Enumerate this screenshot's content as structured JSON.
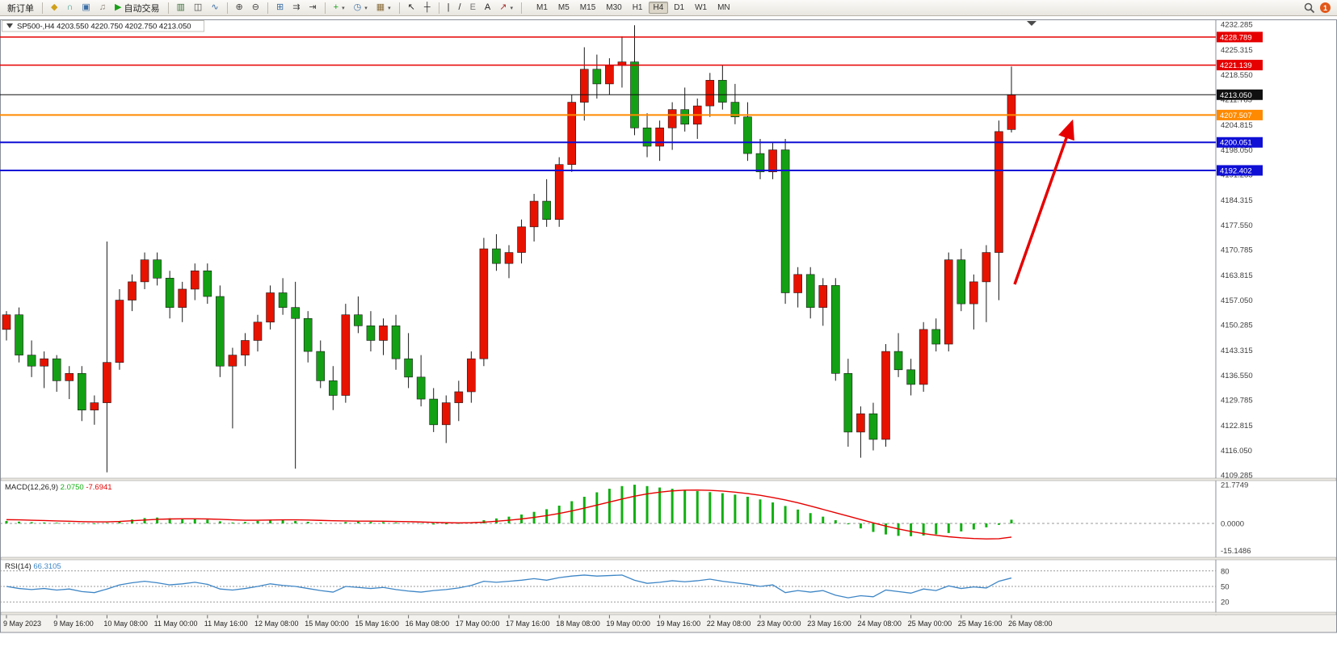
{
  "toolbar": {
    "buttons": [
      {
        "name": "new-order-button",
        "label": "新订单"
      },
      {
        "name": "sep"
      },
      {
        "name": "metaeditor-button",
        "icon": "metaeditor-icon",
        "glyph": "◆",
        "color": "#cfa018"
      },
      {
        "name": "headset-button",
        "icon": "headset-icon",
        "glyph": "∩",
        "color": "#2f9e8f"
      },
      {
        "name": "terminal-button",
        "icon": "terminal-icon",
        "glyph": "▣",
        "color": "#3a6ea5"
      },
      {
        "name": "sound-button",
        "icon": "sound-icon",
        "glyph": "♫",
        "color": "#857f74"
      },
      {
        "name": "autotrade-button",
        "icon": "play-icon",
        "glyph": "▶",
        "color": "#18a018",
        "label": "自动交易"
      },
      {
        "name": "sep"
      },
      {
        "name": "bar-chart-button",
        "icon": "bar-chart-icon",
        "glyph": "▥",
        "color": "#3b6e3b"
      },
      {
        "name": "candlestick-button",
        "icon": "candlestick-icon",
        "glyph": "◫",
        "color": "#444444"
      },
      {
        "name": "line-chart-button",
        "icon": "line-chart-icon",
        "glyph": "∿",
        "color": "#3a6ea5"
      },
      {
        "name": "sep"
      },
      {
        "name": "zoom-in-button",
        "icon": "zoom-in-icon",
        "glyph": "⊕",
        "color": "#444444"
      },
      {
        "name": "zoom-out-button",
        "icon": "zoom-out-icon",
        "glyph": "⊖",
        "color": "#444444"
      },
      {
        "name": "sep"
      },
      {
        "name": "tile-windows-button",
        "icon": "tile-windows-icon",
        "glyph": "⊞",
        "color": "#3a6ea5"
      },
      {
        "name": "auto-scroll-button",
        "icon": "auto-scroll-icon",
        "glyph": "⇉",
        "color": "#444444"
      },
      {
        "name": "chart-shift-button",
        "icon": "chart-shift-icon",
        "glyph": "⇥",
        "color": "#444444"
      },
      {
        "name": "sep"
      },
      {
        "name": "indicators-button",
        "icon": "indicators-add-icon",
        "glyph": "+",
        "color": "#18a018",
        "caret": true
      },
      {
        "name": "periods-button",
        "icon": "clock-icon",
        "glyph": "◷",
        "color": "#3a6ea5",
        "caret": true
      },
      {
        "name": "templates-button",
        "icon": "templates-icon",
        "glyph": "▦",
        "color": "#8a6d3b",
        "caret": true
      },
      {
        "name": "sep"
      },
      {
        "name": "cursor-button",
        "icon": "cursor-icon",
        "glyph": "↖",
        "color": "#222222"
      },
      {
        "name": "crosshair-button",
        "icon": "crosshair-icon",
        "glyph": "┼",
        "color": "#222222"
      },
      {
        "name": "sep"
      },
      {
        "name": "vertical-line-button",
        "icon": "vertical-line-icon",
        "glyph": "|",
        "color": "#222222"
      },
      {
        "name": "trendline-button",
        "icon": "trendline-icon",
        "glyph": "/",
        "color": "#222222"
      },
      {
        "name": "fibonacci-button",
        "icon": "fibonacci-icon",
        "glyph": "E",
        "color": "#777777"
      },
      {
        "name": "text-tool-button",
        "icon": "text-icon",
        "glyph": "A",
        "color": "#222222"
      },
      {
        "name": "arrows-tool-button",
        "icon": "arrow-tool-icon",
        "glyph": "↗",
        "color": "#a33333",
        "caret": true
      },
      {
        "name": "sep"
      }
    ],
    "timeframes": [
      "M1",
      "M5",
      "M15",
      "M30",
      "H1",
      "H4",
      "D1",
      "W1",
      "MN"
    ],
    "active_timeframe": "H4",
    "notification_count": "1"
  },
  "chart": {
    "symbol_label": "SP500-,H4",
    "ohlc_label": "4203.550 4220.750 4202.750 4213.050",
    "collapse_icon": "one-click-collapse",
    "up_color": "#e81200",
    "down_color": "#14a014",
    "wick_color": "#1a1a1a",
    "price_axis": {
      "labels": [
        "4232.285",
        "4225.315",
        "4218.550",
        "4211.785",
        "4204.815",
        "4198.050",
        "4191.285",
        "4184.315",
        "4177.550",
        "4170.785",
        "4163.815",
        "4157.050",
        "4150.285",
        "4143.315",
        "4136.550",
        "4129.785",
        "4122.815",
        "4116.050",
        "4109.285"
      ]
    },
    "hlines": [
      {
        "name": "resistance-line-1",
        "price": 4228.789,
        "badge": "4228.789",
        "color": "#e60000",
        "width": 1.5
      },
      {
        "name": "resistance-line-2",
        "price": 4221.139,
        "badge": "4221.139",
        "color": "#e60000",
        "width": 1.5
      },
      {
        "name": "current-price-line",
        "price": 4213.05,
        "badge": "4213.050",
        "color": "#101010",
        "width": 1
      },
      {
        "name": "pivot-line",
        "price": 4207.507,
        "badge": "4207.507",
        "color": "#ff8a00",
        "width": 2
      },
      {
        "name": "support-line-1",
        "price": 4200.051,
        "badge": "4200.051",
        "color": "#0f0fd6",
        "width": 2
      },
      {
        "name": "support-line-2",
        "price": 4192.402,
        "badge": "4192.402",
        "color": "#0f0fd6",
        "width": 2
      }
    ],
    "candles": [
      [
        4149,
        4154,
        4146,
        4153
      ],
      [
        4153,
        4155,
        4140,
        4142
      ],
      [
        4142,
        4146,
        4136,
        4139
      ],
      [
        4139,
        4143,
        4133,
        4141
      ],
      [
        4141,
        4142,
        4132,
        4135
      ],
      [
        4135,
        4139,
        4130,
        4137
      ],
      [
        4137,
        4139,
        4124,
        4127
      ],
      [
        4127,
        4131,
        4123,
        4129
      ],
      [
        4129,
        4173,
        4110,
        4140
      ],
      [
        4140,
        4160,
        4138,
        4157
      ],
      [
        4157,
        4164,
        4154,
        4162
      ],
      [
        4162,
        4170,
        4160,
        4168
      ],
      [
        4168,
        4170,
        4161,
        4163
      ],
      [
        4163,
        4165,
        4152,
        4155
      ],
      [
        4155,
        4162,
        4151,
        4160
      ],
      [
        4160,
        4167,
        4157,
        4165
      ],
      [
        4165,
        4167,
        4156,
        4158
      ],
      [
        4158,
        4161,
        4136,
        4139
      ],
      [
        4139,
        4144,
        4122,
        4142
      ],
      [
        4142,
        4148,
        4139,
        4146
      ],
      [
        4146,
        4153,
        4143,
        4151
      ],
      [
        4151,
        4161,
        4149,
        4159
      ],
      [
        4159,
        4163,
        4153,
        4155
      ],
      [
        4155,
        4162,
        4111,
        4152
      ],
      [
        4152,
        4154,
        4140,
        4143
      ],
      [
        4143,
        4146,
        4133,
        4135
      ],
      [
        4135,
        4139,
        4127,
        4131
      ],
      [
        4131,
        4156,
        4129,
        4153
      ],
      [
        4153,
        4158,
        4148,
        4150
      ],
      [
        4150,
        4154,
        4143,
        4146
      ],
      [
        4146,
        4152,
        4142,
        4150
      ],
      [
        4150,
        4153,
        4138,
        4141
      ],
      [
        4141,
        4148,
        4133,
        4136
      ],
      [
        4136,
        4142,
        4128,
        4130
      ],
      [
        4130,
        4133,
        4121,
        4123
      ],
      [
        4123,
        4131,
        4118,
        4129
      ],
      [
        4129,
        4135,
        4124,
        4132
      ],
      [
        4132,
        4143,
        4129,
        4141
      ],
      [
        4141,
        4174,
        4139,
        4171
      ],
      [
        4171,
        4175,
        4165,
        4167
      ],
      [
        4167,
        4172,
        4163,
        4170
      ],
      [
        4170,
        4179,
        4167,
        4177
      ],
      [
        4177,
        4186,
        4173,
        4184
      ],
      [
        4184,
        4190,
        4177,
        4179
      ],
      [
        4179,
        4196,
        4177,
        4194
      ],
      [
        4194,
        4213,
        4192,
        4211
      ],
      [
        4211,
        4226,
        4206,
        4220
      ],
      [
        4220,
        4224,
        4212,
        4216
      ],
      [
        4216,
        4223,
        4213,
        4221
      ],
      [
        4221,
        4229,
        4215,
        4222
      ],
      [
        4222,
        4232,
        4202,
        4204
      ],
      [
        4204,
        4208,
        4196,
        4199
      ],
      [
        4199,
        4206,
        4195,
        4204
      ],
      [
        4204,
        4211,
        4198,
        4209
      ],
      [
        4209,
        4215,
        4203,
        4205
      ],
      [
        4205,
        4212,
        4201,
        4210
      ],
      [
        4210,
        4219,
        4207,
        4217
      ],
      [
        4217,
        4221,
        4209,
        4211
      ],
      [
        4211,
        4216,
        4205,
        4207
      ],
      [
        4207,
        4211,
        4195,
        4197
      ],
      [
        4197,
        4201,
        4190,
        4192
      ],
      [
        4192,
        4200,
        4190,
        4198
      ],
      [
        4198,
        4201,
        4156,
        4159
      ],
      [
        4159,
        4166,
        4155,
        4164
      ],
      [
        4164,
        4166,
        4152,
        4155
      ],
      [
        4155,
        4163,
        4150,
        4161
      ],
      [
        4161,
        4163,
        4135,
        4137
      ],
      [
        4137,
        4141,
        4117,
        4121
      ],
      [
        4121,
        4128,
        4114,
        4126
      ],
      [
        4126,
        4129,
        4116,
        4119
      ],
      [
        4119,
        4145,
        4117,
        4143
      ],
      [
        4143,
        4148,
        4136,
        4138
      ],
      [
        4138,
        4141,
        4131,
        4134
      ],
      [
        4134,
        4151,
        4132,
        4149
      ],
      [
        4149,
        4152,
        4143,
        4145
      ],
      [
        4145,
        4170,
        4143,
        4168
      ],
      [
        4168,
        4171,
        4154,
        4156
      ],
      [
        4156,
        4164,
        4149,
        4162
      ],
      [
        4162,
        4172,
        4151,
        4170
      ],
      [
        4170,
        4206,
        4157,
        4203
      ],
      [
        4203.55,
        4220.75,
        4202.75,
        4213.05
      ]
    ],
    "arrow": {
      "name": "trend-arrow",
      "from": [
        1256,
        332
      ],
      "to": [
        1327,
        131
      ],
      "color": "#e60000"
    },
    "shift_marker": "chart-shift-marker"
  },
  "macd": {
    "label": "MACD(12,26,9)",
    "main_value": "2.0750",
    "signal_value": "-7.6941",
    "histogram_color": "#10b010",
    "signal_color": "#e60000",
    "axis": [
      {
        "label": "21.7749",
        "value": 21.7749
      },
      {
        "label": "0.0000",
        "value": 0
      },
      {
        "label": "-15.1486",
        "value": -15.1486
      }
    ],
    "histogram": [
      1.4,
      1.0,
      0.7,
      0.5,
      0.4,
      0.3,
      -0.2,
      -0.4,
      0.3,
      1.2,
      2.2,
      3.0,
      3.3,
      2.9,
      2.3,
      2.5,
      2.1,
      1.2,
      0.5,
      0.8,
      1.4,
      2.0,
      1.8,
      1.4,
      0.9,
      0.4,
      0.0,
      0.8,
      1.0,
      0.8,
      0.7,
      0.5,
      0.2,
      -0.2,
      -0.6,
      -0.5,
      -0.2,
      0.3,
      1.8,
      2.8,
      3.8,
      5.0,
      6.5,
      8.0,
      10.0,
      12.5,
      15.0,
      17.5,
      19.5,
      21.0,
      21.7749,
      21.0,
      20.2,
      19.5,
      18.8,
      18.2,
      17.6,
      17.0,
      16.2,
      15.0,
      13.5,
      11.8,
      9.8,
      7.8,
      5.8,
      3.8,
      1.8,
      -0.5,
      -2.8,
      -4.8,
      -6.2,
      -7.0,
      -7.2,
      -6.8,
      -6.2,
      -5.4,
      -4.5,
      -3.4,
      -2.2,
      -0.8,
      2.075
    ],
    "signal": [
      2.1,
      2.0,
      1.8,
      1.6,
      1.4,
      1.2,
      1.0,
      0.9,
      0.9,
      1.1,
      1.5,
      1.9,
      2.3,
      2.5,
      2.6,
      2.6,
      2.5,
      2.3,
      2.0,
      1.8,
      1.8,
      1.9,
      2.0,
      2.0,
      1.9,
      1.7,
      1.5,
      1.4,
      1.3,
      1.3,
      1.2,
      1.1,
      1.0,
      0.8,
      0.6,
      0.4,
      0.3,
      0.4,
      0.7,
      1.2,
      1.8,
      2.5,
      3.4,
      4.4,
      5.6,
      7.0,
      8.6,
      10.3,
      12.0,
      13.7,
      15.3,
      16.6,
      17.6,
      18.3,
      18.7,
      18.8,
      18.6,
      18.2,
      17.6,
      16.8,
      15.8,
      14.6,
      13.2,
      11.6,
      9.8,
      7.9,
      6.0,
      4.1,
      2.2,
      0.3,
      -1.5,
      -3.1,
      -4.5,
      -5.7,
      -6.7,
      -7.5,
      -8.1,
      -8.5,
      -8.7,
      -8.6,
      -7.6941
    ]
  },
  "rsi": {
    "label": "RSI(14)",
    "value": "66.3105",
    "line_color": "#3e86c6",
    "levels": [
      {
        "label": "80",
        "value": 80
      },
      {
        "label": "50",
        "value": 50
      },
      {
        "label": "20",
        "value": 20
      }
    ],
    "series": [
      50,
      46,
      44,
      46,
      43,
      45,
      40,
      38,
      45,
      53,
      57,
      60,
      57,
      53,
      55,
      58,
      54,
      45,
      43,
      46,
      50,
      55,
      52,
      50,
      46,
      42,
      39,
      50,
      48,
      46,
      48,
      44,
      41,
      39,
      42,
      44,
      47,
      52,
      60,
      58,
      60,
      62,
      65,
      62,
      67,
      70,
      72,
      70,
      71,
      72,
      62,
      56,
      58,
      61,
      59,
      61,
      64,
      60,
      57,
      54,
      50,
      53,
      38,
      42,
      39,
      42,
      33,
      28,
      32,
      30,
      43,
      40,
      37,
      45,
      42,
      51,
      46,
      49,
      47,
      60,
      66.3105
    ]
  },
  "time_axis": [
    "9 May 2023",
    "9 May 16:00",
    "10 May 08:00",
    "11 May 00:00",
    "11 May 16:00",
    "12 May 08:00",
    "15 May 00:00",
    "15 May 16:00",
    "16 May 08:00",
    "17 May 00:00",
    "17 May 16:00",
    "18 May 08:00",
    "19 May 00:00",
    "19 May 16:00",
    "22 May 08:00",
    "23 May 00:00",
    "23 May 16:00",
    "24 May 08:00",
    "25 May 00:00",
    "25 May 16:00",
    "26 May 08:00"
  ]
}
